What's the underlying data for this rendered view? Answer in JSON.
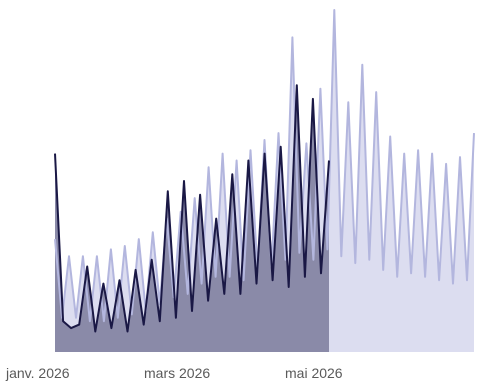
{
  "chart_data": {
    "type": "area",
    "title": "",
    "xlabel": "",
    "ylabel": "",
    "x_start": "2026-01-01",
    "x_end": "2026-07-31",
    "x_step": "week",
    "ylim": [
      0,
      100
    ],
    "x_ticks": [
      {
        "date": "2026-01-01",
        "label": "janv. 2026"
      },
      {
        "date": "2026-03-01",
        "label": "mars 2026"
      },
      {
        "date": "2026-05-01",
        "label": "mai 2026"
      }
    ],
    "highlight_range": [
      "2026-01-01",
      "2026-05-19"
    ],
    "series": [
      {
        "role": "full-period",
        "color": "#b3b6de",
        "fill": "#dcddf0",
        "values": [
          33,
          10,
          28,
          10,
          28,
          9,
          28,
          9,
          30,
          10,
          31,
          11,
          33,
          12,
          35,
          14,
          39,
          16,
          41,
          17,
          45,
          20,
          54,
          22,
          58,
          22,
          56,
          21,
          59,
          24,
          62,
          25,
          64,
          27,
          92,
          29,
          61,
          27,
          77,
          30,
          100,
          28,
          73,
          26,
          84,
          27,
          76,
          24,
          63,
          22,
          58,
          23,
          59,
          22,
          58,
          21,
          55,
          20,
          57,
          21,
          64
        ]
      },
      {
        "role": "selected-period",
        "color": "#1a1845",
        "fill": "#8a8aa8",
        "values": [
          58,
          9,
          7,
          8,
          25,
          6,
          20,
          7,
          21,
          6,
          24,
          8,
          27,
          9,
          47,
          10,
          50,
          12,
          46,
          15,
          39,
          17,
          52,
          17,
          56,
          20,
          58,
          21,
          60,
          19,
          78,
          22,
          74,
          23,
          56
        ]
      }
    ]
  }
}
